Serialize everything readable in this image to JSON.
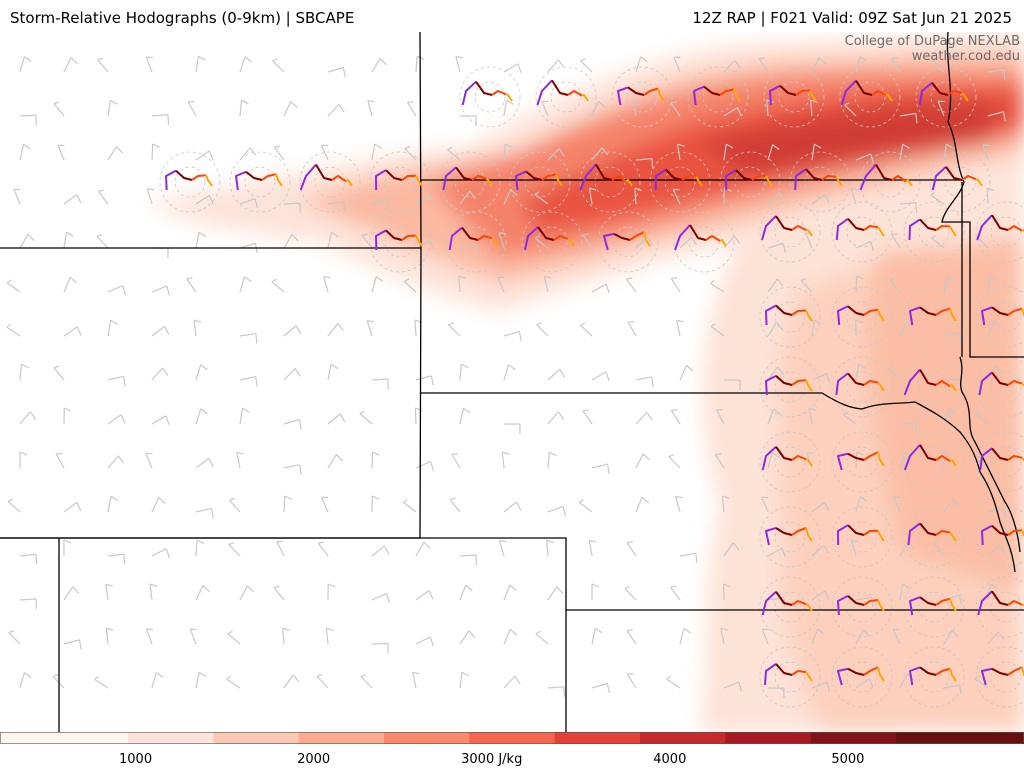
{
  "header": {
    "title_left": "Storm-Relative Hodographs (0-9km) | SBCAPE",
    "title_right": "12Z RAP | F021 Valid: 09Z Sat Jun 21 2025"
  },
  "credits": {
    "line1": "College of DuPage NEXLAB",
    "line2": "weather.cod.edu"
  },
  "colorbar": {
    "ticks": [
      {
        "value": 1000,
        "label": "1000"
      },
      {
        "value": 2000,
        "label": "2000"
      },
      {
        "value": 3000,
        "label": "3000 J/kg"
      },
      {
        "value": 4000,
        "label": "4000"
      },
      {
        "value": 5000,
        "label": "5000"
      }
    ],
    "range": [
      250,
      6000
    ],
    "colors": [
      "#fff5ef",
      "#fee4d7",
      "#fcc9b4",
      "#fcab8f",
      "#fa8a6b",
      "#f4664f",
      "#e34138",
      "#c62a2b",
      "#a71a22",
      "#851219",
      "#671012"
    ]
  },
  "hodograph_colors": {
    "layer_0_1km": "#8a2be2",
    "layer_1_3km": "#7a0000",
    "layer_3_6km": "#ff4500",
    "layer_6_9km": "#ffa500"
  },
  "barb_color": "#c8c8c8",
  "boundary_color": "#000000"
}
